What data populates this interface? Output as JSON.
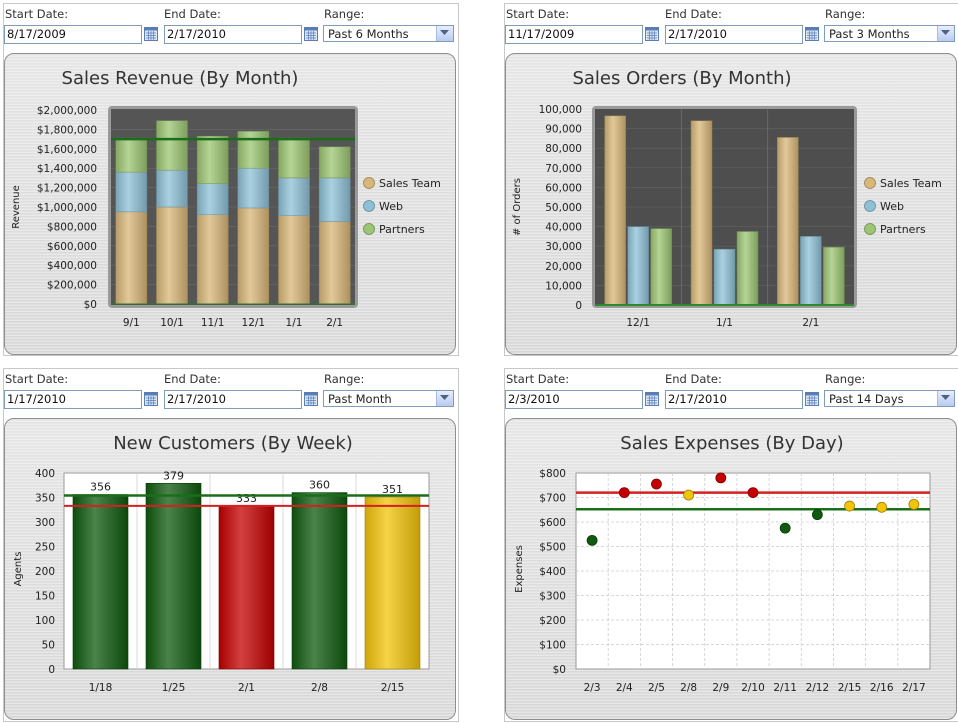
{
  "filters": {
    "start_label": "Start Date:",
    "end_label": "End Date:",
    "range_label": "Range:"
  },
  "widgets": [
    {
      "start_date": "8/17/2009",
      "end_date": "2/17/2010",
      "range": "Past 6 Months"
    },
    {
      "start_date": "11/17/2009",
      "end_date": "2/17/2010",
      "range": "Past 3 Months"
    },
    {
      "start_date": "1/17/2010",
      "end_date": "2/17/2010",
      "range": "Past Month"
    },
    {
      "start_date": "2/3/2010",
      "end_date": "2/17/2010",
      "range": "Past 14 Days"
    }
  ],
  "colors": {
    "sales_team": "#d8b778",
    "web": "#8ec1d6",
    "partners": "#9cc673",
    "green": "#0f5a0f",
    "red": "#c40000",
    "yellow": "#f2c40a",
    "target_green": "#1a6e1a",
    "target_red": "#d42020"
  },
  "chart_data": [
    {
      "type": "bar",
      "stacked": true,
      "title": "Sales Revenue (By Month)",
      "xlabel": "",
      "ylabel": "Revenue",
      "categories": [
        "9/1",
        "10/1",
        "11/1",
        "12/1",
        "1/1",
        "2/1"
      ],
      "ylim": [
        0,
        2000000
      ],
      "yticks": [
        "$0",
        "$200,000",
        "$400,000",
        "$600,000",
        "$800,000",
        "$1,000,000",
        "$1,200,000",
        "$1,400,000",
        "$1,600,000",
        "$1,800,000",
        "$2,000,000"
      ],
      "series": [
        {
          "name": "Sales Team",
          "values": [
            950000,
            1000000,
            920000,
            990000,
            910000,
            850000
          ]
        },
        {
          "name": "Web",
          "values": [
            410000,
            380000,
            320000,
            410000,
            390000,
            450000
          ]
        },
        {
          "name": "Partners",
          "values": [
            350000,
            510000,
            490000,
            380000,
            410000,
            320000
          ]
        }
      ],
      "target_line": 1700000,
      "legend_position": "right"
    },
    {
      "type": "bar",
      "stacked": false,
      "title": "Sales Orders (By Month)",
      "xlabel": "",
      "ylabel": "# of Orders",
      "categories": [
        "12/1",
        "1/1",
        "2/1"
      ],
      "ylim": [
        0,
        100000
      ],
      "yticks": [
        "0",
        "10,000",
        "20,000",
        "30,000",
        "40,000",
        "50,000",
        "60,000",
        "70,000",
        "80,000",
        "90,000",
        "100,000"
      ],
      "series": [
        {
          "name": "Sales Team",
          "values": [
            96500,
            94000,
            85500
          ]
        },
        {
          "name": "Web",
          "values": [
            40000,
            28500,
            35000
          ]
        },
        {
          "name": "Partners",
          "values": [
            39000,
            37500,
            29500
          ]
        }
      ],
      "legend_position": "right"
    },
    {
      "type": "bar",
      "stacked": false,
      "title": "New Customers (By Week)",
      "xlabel": "",
      "ylabel": "Agents",
      "categories": [
        "1/18",
        "1/25",
        "2/1",
        "2/8",
        "2/15"
      ],
      "ylim": [
        0,
        400
      ],
      "yticks": [
        "0",
        "50",
        "100",
        "150",
        "200",
        "250",
        "300",
        "350",
        "400"
      ],
      "values": [
        356,
        379,
        333,
        360,
        351
      ],
      "value_labels": [
        "356",
        "379",
        "333",
        "360",
        "351"
      ],
      "bar_status": [
        "green",
        "green",
        "red",
        "green",
        "yellow"
      ],
      "target_green": 354,
      "target_red": 333
    },
    {
      "type": "scatter",
      "title": "Sales Expenses (By Day)",
      "xlabel": "",
      "ylabel": "Expenses",
      "categories": [
        "2/3",
        "2/4",
        "2/5",
        "2/8",
        "2/9",
        "2/10",
        "2/11",
        "2/12",
        "2/15",
        "2/16",
        "2/17"
      ],
      "ylim": [
        0,
        800
      ],
      "yticks": [
        "$0",
        "$100",
        "$200",
        "$300",
        "$400",
        "$500",
        "$600",
        "$700",
        "$800"
      ],
      "values": [
        525,
        720,
        755,
        710,
        780,
        720,
        575,
        630,
        665,
        660,
        672
      ],
      "point_status": [
        "green",
        "red",
        "red",
        "yellow",
        "red",
        "red",
        "green",
        "green",
        "yellow",
        "yellow",
        "yellow"
      ],
      "target_green": 652,
      "target_red": 720
    }
  ]
}
